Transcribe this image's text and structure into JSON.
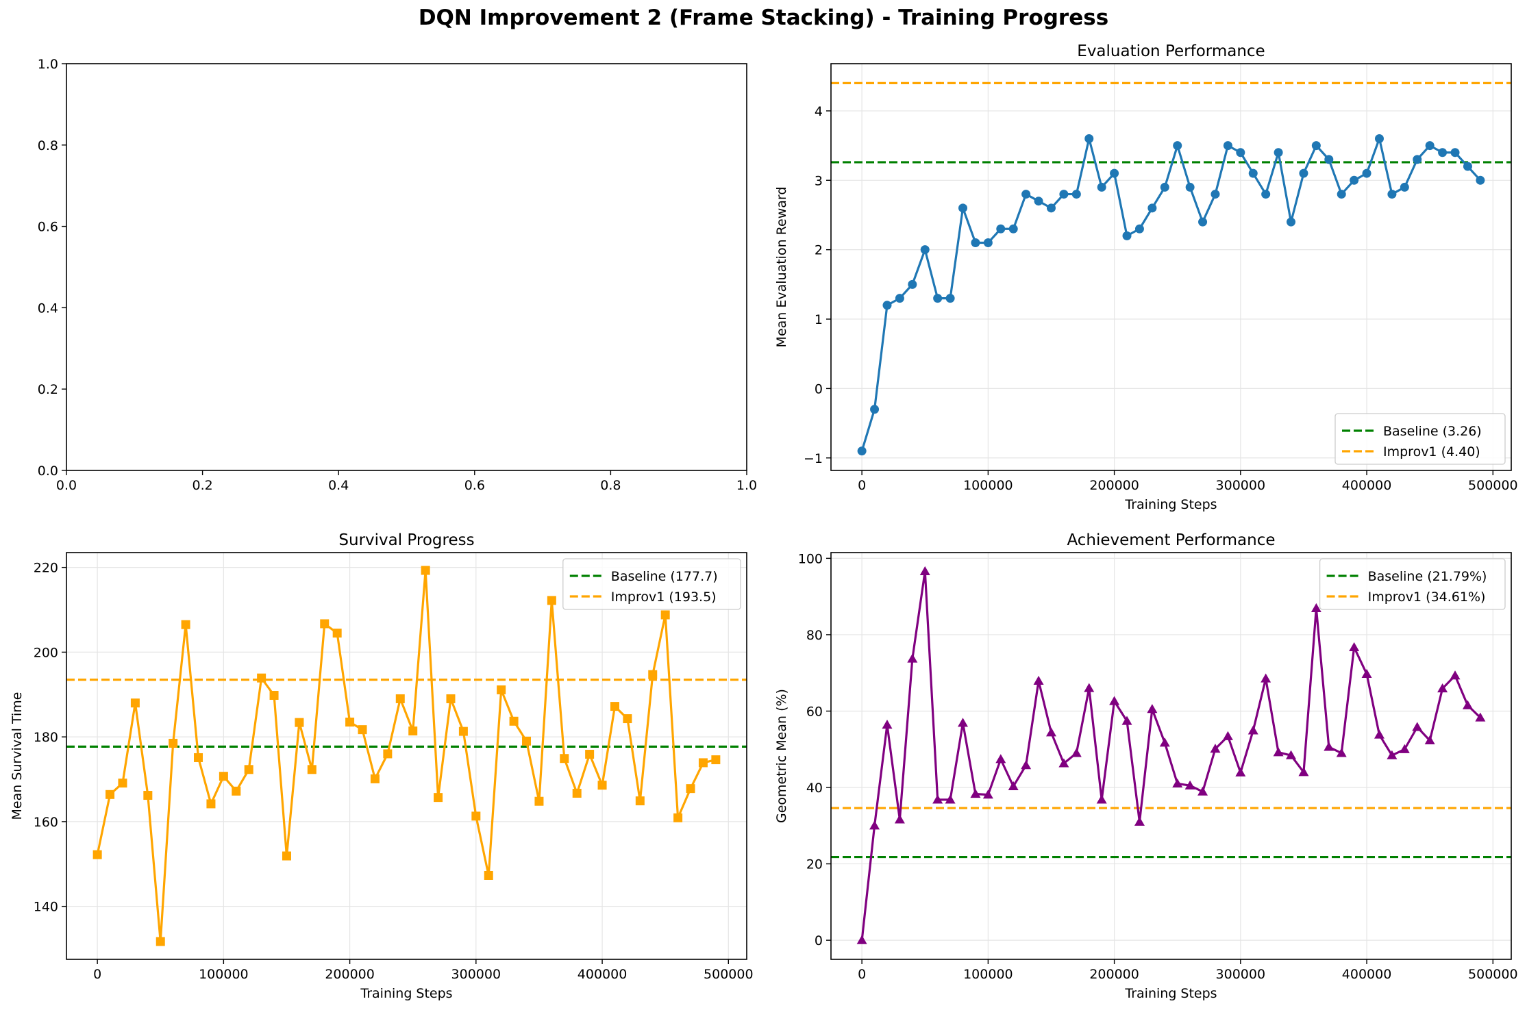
{
  "figure": {
    "title": "DQN Improvement 2 (Frame Stacking) - Training Progress"
  },
  "colors": {
    "eval": "#1f77b4",
    "survival": "#ffa500",
    "achievement": "#800080",
    "baseline": "#008000",
    "improv1": "#ffa500",
    "grid": "#e5e5e5"
  },
  "chart_data": [
    {
      "type": "line",
      "panel": "top-left",
      "title": "",
      "xlabel": "",
      "ylabel": "",
      "xlim": [
        0,
        1
      ],
      "ylim": [
        0,
        1
      ],
      "grid": false,
      "xticks": [
        "0.0",
        "0.2",
        "0.4",
        "0.6",
        "0.8",
        "1.0"
      ],
      "yticks": [
        "0.0",
        "0.2",
        "0.4",
        "0.6",
        "0.8",
        "1.0"
      ],
      "series": []
    },
    {
      "type": "line",
      "panel": "top-right",
      "title": "Evaluation Performance",
      "xlabel": "Training Steps",
      "ylabel": "Mean Evaluation Reward",
      "xlim": [
        -24500,
        514500
      ],
      "ylim": [
        -1.18,
        4.68
      ],
      "grid": true,
      "legend_position": "lower-right",
      "xticks": [
        "0",
        "100000",
        "200000",
        "300000",
        "400000",
        "500000"
      ],
      "yticks": [
        "−1",
        "0",
        "1",
        "2",
        "3",
        "4"
      ],
      "marker": "circle",
      "series": [
        {
          "x": [
            0,
            10000,
            20000,
            30000,
            40000,
            50000,
            60000,
            70000,
            80000,
            90000,
            100000,
            110000,
            120000,
            130000,
            140000,
            150000,
            160000,
            170000,
            180000,
            190000,
            200000,
            210000,
            220000,
            230000,
            240000,
            250000,
            260000,
            270000,
            280000,
            290000,
            300000,
            310000,
            320000,
            330000,
            340000,
            350000,
            360000,
            370000,
            380000,
            390000,
            400000,
            410000,
            420000,
            430000,
            440000,
            450000,
            460000,
            470000,
            480000,
            490000
          ],
          "values": [
            -0.9,
            -0.3,
            1.2,
            1.3,
            1.5,
            2.0,
            1.3,
            1.3,
            2.6,
            2.1,
            2.1,
            2.3,
            2.3,
            2.8,
            2.7,
            2.6,
            2.8,
            2.8,
            3.6,
            2.9,
            3.1,
            2.2,
            2.3,
            2.6,
            2.9,
            3.5,
            2.9,
            2.4,
            2.8,
            3.5,
            3.4,
            3.1,
            2.8,
            3.4,
            2.4,
            3.1,
            3.5,
            3.3,
            2.8,
            3.0,
            3.1,
            3.6,
            2.8,
            2.9,
            3.3,
            3.5,
            3.4,
            3.4,
            3.2,
            3.0
          ]
        }
      ],
      "reference_lines": [
        {
          "name": "Baseline (3.26)",
          "y": 3.26,
          "color": "#008000"
        },
        {
          "name": "Improv1 (4.40)",
          "y": 4.4,
          "color": "#ffa500"
        }
      ]
    },
    {
      "type": "line",
      "panel": "bottom-left",
      "title": "Survival Progress",
      "xlabel": "Training Steps",
      "ylabel": "Mean Survival Time",
      "xlim": [
        -24500,
        514500
      ],
      "ylim": [
        127.5,
        223.5
      ],
      "grid": true,
      "legend_position": "upper-right",
      "xticks": [
        "0",
        "100000",
        "200000",
        "300000",
        "400000",
        "500000"
      ],
      "yticks": [
        "140",
        "160",
        "180",
        "200",
        "220"
      ],
      "marker": "square",
      "series": [
        {
          "x": [
            0,
            10000,
            20000,
            30000,
            40000,
            50000,
            60000,
            70000,
            80000,
            90000,
            100000,
            110000,
            120000,
            130000,
            140000,
            150000,
            160000,
            170000,
            180000,
            190000,
            200000,
            210000,
            220000,
            230000,
            240000,
            250000,
            260000,
            270000,
            280000,
            290000,
            300000,
            310000,
            320000,
            330000,
            340000,
            350000,
            360000,
            370000,
            380000,
            390000,
            400000,
            410000,
            420000,
            430000,
            440000,
            450000,
            460000,
            470000,
            480000,
            490000
          ],
          "values": [
            152.2,
            166.4,
            169.1,
            188.0,
            166.2,
            131.7,
            178.5,
            206.5,
            175.1,
            164.2,
            170.7,
            167.2,
            172.3,
            193.9,
            189.8,
            151.9,
            183.4,
            172.3,
            206.7,
            204.5,
            183.5,
            181.7,
            170.1,
            176.0,
            189.0,
            181.4,
            219.3,
            165.7,
            189.0,
            181.3,
            161.3,
            147.3,
            191.1,
            183.7,
            179.0,
            164.8,
            212.2,
            174.9,
            166.7,
            175.9,
            168.6,
            187.2,
            184.3,
            164.9,
            194.7,
            208.8,
            160.9,
            167.8,
            173.9,
            174.6
          ]
        }
      ],
      "reference_lines": [
        {
          "name": "Baseline (177.7)",
          "y": 177.7,
          "color": "#008000"
        },
        {
          "name": "Improv1 (193.5)",
          "y": 193.5,
          "color": "#ffa500"
        }
      ]
    },
    {
      "type": "line",
      "panel": "bottom-right",
      "title": "Achievement Performance",
      "xlabel": "Training Steps",
      "ylabel": "Geometric Mean (%)",
      "xlim": [
        -24500,
        514500
      ],
      "ylim": [
        -5,
        101.5
      ],
      "grid": true,
      "legend_position": "upper-right",
      "xticks": [
        "0",
        "100000",
        "200000",
        "300000",
        "400000",
        "500000"
      ],
      "yticks": [
        "0",
        "20",
        "40",
        "60",
        "80",
        "100"
      ],
      "marker": "triangle",
      "series": [
        {
          "x": [
            0,
            10000,
            20000,
            30000,
            40000,
            50000,
            60000,
            70000,
            80000,
            90000,
            100000,
            110000,
            120000,
            130000,
            140000,
            150000,
            160000,
            170000,
            180000,
            190000,
            200000,
            210000,
            220000,
            230000,
            240000,
            250000,
            260000,
            270000,
            280000,
            290000,
            300000,
            310000,
            320000,
            330000,
            340000,
            350000,
            360000,
            370000,
            380000,
            390000,
            400000,
            410000,
            420000,
            430000,
            440000,
            450000,
            460000,
            470000,
            480000,
            490000
          ],
          "values": [
            0.0,
            30.0,
            56.4,
            31.6,
            73.7,
            96.6,
            36.8,
            36.8,
            56.9,
            38.3,
            38.1,
            47.4,
            40.3,
            45.8,
            67.9,
            54.4,
            46.3,
            49.0,
            66.0,
            36.8,
            62.6,
            57.4,
            31.0,
            60.5,
            51.7,
            41.0,
            40.5,
            38.9,
            50.1,
            53.4,
            43.9,
            54.9,
            68.5,
            49.2,
            48.4,
            44.0,
            86.9,
            50.6,
            49.0,
            76.7,
            69.7,
            53.8,
            48.4,
            50.0,
            55.8,
            52.3,
            65.9,
            69.3,
            61.5,
            58.3
          ]
        }
      ],
      "reference_lines": [
        {
          "name": "Baseline (21.79%)",
          "y": 21.79,
          "color": "#008000"
        },
        {
          "name": "Improv1 (34.61%)",
          "y": 34.61,
          "color": "#ffa500"
        }
      ]
    }
  ]
}
